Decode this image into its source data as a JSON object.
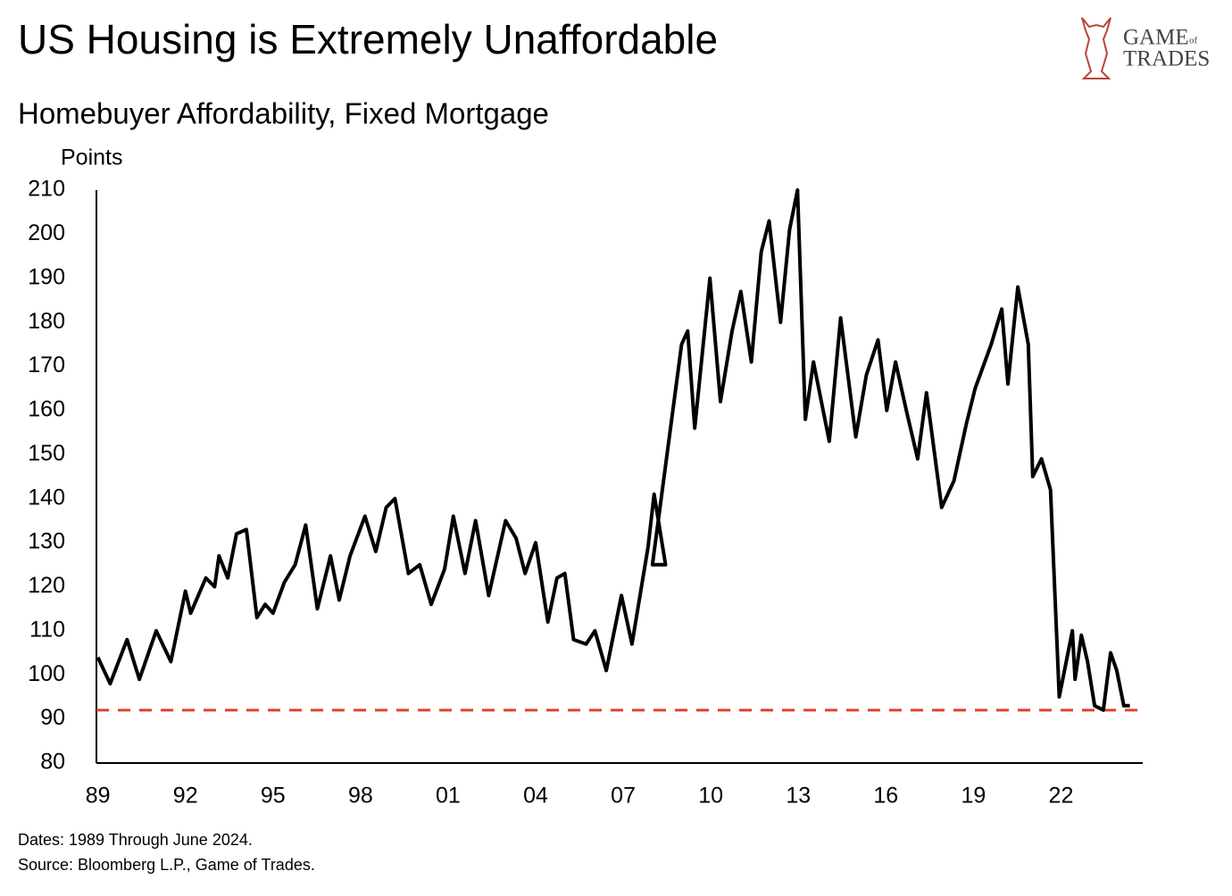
{
  "chart_data": {
    "type": "line",
    "title": "US Housing is Extremely Unaffordable",
    "subtitle": "Homebuyer Affordability, Fixed Mortgage",
    "y_label": "Points",
    "logo": [
      "GAME",
      "of",
      "TRADES"
    ],
    "notes": [
      "Dates: 1989 Through June 2024.",
      "Source: Bloomberg L.P., Game of Trades."
    ],
    "reference_line": {
      "value": 92,
      "color": "#e0442c"
    },
    "series": [
      {
        "name": "Homebuyer Affordability",
        "color": "#000000",
        "x": [
          1989.0,
          1989.42,
          1990.0,
          1990.42,
          1991.0,
          1991.5,
          1992.0,
          1992.18,
          1992.7,
          1993.0,
          1993.15,
          1993.45,
          1993.75,
          1994.09,
          1994.45,
          1994.73,
          1995.0,
          1995.39,
          1995.76,
          1996.12,
          1996.52,
          1996.97,
          1997.27,
          1997.64,
          1998.15,
          1998.52,
          1998.88,
          1999.18,
          1999.64,
          2000.03,
          2000.42,
          2000.88,
          2001.18,
          2001.58,
          2001.94,
          2002.39,
          2002.97,
          2003.33,
          2003.64,
          2004.0,
          2004.42,
          2004.73,
          2005.0,
          2005.3,
          2005.73,
          2006.03,
          2006.42,
          2006.94,
          2007.3,
          2007.85,
          2008.06,
          2008.45,
          2008.0,
          2009.0,
          2009.21,
          2009.45,
          2009.97,
          2010.33,
          2010.73,
          2011.03,
          2011.39,
          2011.73,
          2012.0,
          2012.39,
          2012.7,
          2012.97,
          2013.24,
          2013.52,
          2014.06,
          2014.45,
          2014.97,
          2015.33,
          2015.73,
          2016.03,
          2016.33,
          2016.7,
          2017.09,
          2017.39,
          2017.91,
          2018.33,
          2018.76,
          2019.06,
          2019.61,
          2019.97,
          2020.18,
          2020.52,
          2020.88,
          2021.03,
          2021.33,
          2021.64,
          2021.94,
          2022.39,
          2022.48,
          2022.7,
          2022.91,
          2023.15,
          2023.45,
          2023.7,
          2023.91,
          2024.15,
          2024.36
        ],
        "values": [
          104,
          98,
          108,
          99,
          110,
          103,
          119,
          114,
          122,
          120,
          127,
          122,
          132,
          133,
          113,
          116,
          114,
          121,
          125,
          134,
          115,
          127,
          117,
          127,
          136,
          128,
          138,
          140,
          123,
          125,
          116,
          124,
          136,
          123,
          135,
          118,
          135,
          131,
          123,
          130,
          112,
          122,
          123,
          108,
          107,
          110,
          101,
          118,
          107,
          129,
          141,
          125,
          125,
          175,
          178,
          156,
          190,
          162,
          178,
          187,
          171,
          196,
          203,
          180,
          201,
          210,
          158,
          171,
          153,
          181,
          154,
          168,
          176,
          160,
          171,
          160,
          149,
          164,
          138,
          144,
          157,
          165,
          175,
          183,
          166,
          188,
          175,
          145,
          149,
          142,
          95,
          110,
          99,
          109,
          103,
          93,
          92,
          105,
          101,
          93,
          93
        ]
      }
    ],
    "xlim": [
      1988.95,
      2024.8
    ],
    "ylim": [
      80,
      210
    ],
    "xticks": [
      {
        "value": 1989,
        "label": "89"
      },
      {
        "value": 1992,
        "label": "92"
      },
      {
        "value": 1995,
        "label": "95"
      },
      {
        "value": 1998,
        "label": "98"
      },
      {
        "value": 2001,
        "label": "01"
      },
      {
        "value": 2004,
        "label": "04"
      },
      {
        "value": 2007,
        "label": "07"
      },
      {
        "value": 2010,
        "label": "10"
      },
      {
        "value": 2013,
        "label": "13"
      },
      {
        "value": 2016,
        "label": "16"
      },
      {
        "value": 2019,
        "label": "19"
      },
      {
        "value": 2022,
        "label": "22"
      }
    ],
    "yticks": [
      80,
      90,
      100,
      110,
      120,
      130,
      140,
      150,
      160,
      170,
      180,
      190,
      200,
      210
    ]
  }
}
